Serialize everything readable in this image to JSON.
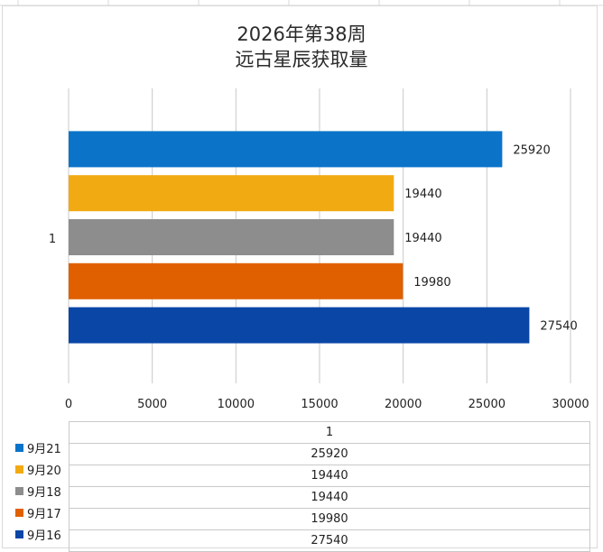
{
  "chart_data": {
    "type": "bar",
    "orientation": "horizontal",
    "title": "2026年第38周",
    "subtitle": "远古星辰获取量",
    "categories": [
      "1"
    ],
    "series": [
      {
        "name": "9月21",
        "values": [
          25920
        ],
        "color": "#0b74c9"
      },
      {
        "name": "9月20",
        "values": [
          19440
        ],
        "color": "#f2aa13"
      },
      {
        "name": "9月18",
        "values": [
          19440
        ],
        "color": "#8d8d8d"
      },
      {
        "name": "9月17",
        "values": [
          19980
        ],
        "color": "#e06000"
      },
      {
        "name": "9月16",
        "values": [
          27540
        ],
        "color": "#0a46a6"
      }
    ],
    "xlim": [
      0,
      30000
    ],
    "xticks": [
      0,
      5000,
      10000,
      15000,
      20000,
      25000,
      30000
    ],
    "grid": true,
    "legend": "table-below"
  }
}
